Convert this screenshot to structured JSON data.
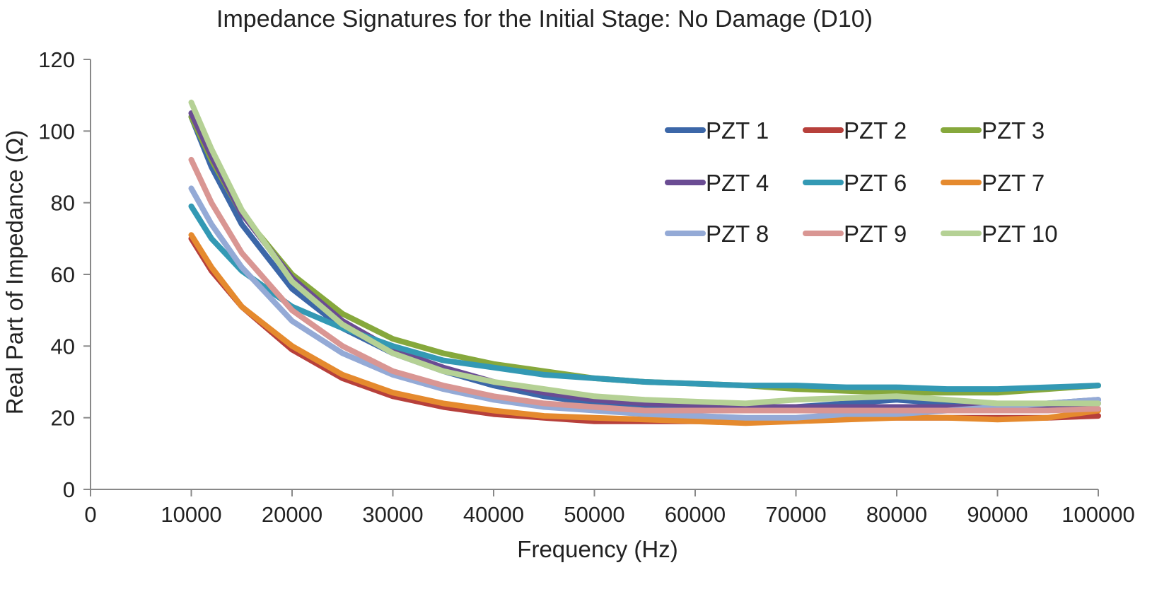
{
  "chart_data": {
    "type": "line",
    "title": "Impedance Signatures for the Initial Stage: No Damage (D10)",
    "xlabel": "Frequency (Hz)",
    "ylabel": "Real Part of Impedance (Ω)",
    "xlim": [
      0,
      100000
    ],
    "ylim": [
      0,
      120
    ],
    "xticks": [
      0,
      10000,
      20000,
      30000,
      40000,
      50000,
      60000,
      70000,
      80000,
      90000,
      100000
    ],
    "yticks": [
      0,
      20,
      40,
      60,
      80,
      100,
      120
    ],
    "grid": false,
    "legend_position": "top-right",
    "x": [
      10000,
      12000,
      15000,
      20000,
      25000,
      30000,
      35000,
      40000,
      45000,
      50000,
      55000,
      60000,
      65000,
      70000,
      75000,
      80000,
      85000,
      90000,
      95000,
      100000
    ],
    "series": [
      {
        "name": "PZT 1",
        "color": "#3c67a8",
        "values": [
          104,
          90,
          74,
          56,
          45,
          38,
          33,
          29,
          26,
          24,
          23,
          22.5,
          22,
          23,
          24,
          25,
          24,
          23,
          24,
          25
        ]
      },
      {
        "name": "PZT 2",
        "color": "#b7403b",
        "values": [
          70,
          61,
          51,
          39,
          31,
          26,
          23,
          21,
          20,
          19,
          19,
          19,
          19,
          19.5,
          20,
          20,
          20,
          20,
          20,
          20.5
        ]
      },
      {
        "name": "PZT 3",
        "color": "#86a83c",
        "values": [
          104,
          92,
          77,
          60,
          49,
          42,
          38,
          35,
          33,
          31,
          30,
          29.5,
          29,
          28,
          27.5,
          27,
          27,
          27,
          28,
          29
        ]
      },
      {
        "name": "PZT 4",
        "color": "#6a4c93",
        "values": [
          105,
          93,
          77,
          59,
          47,
          39,
          34,
          30,
          27,
          25,
          24,
          23.5,
          23,
          23,
          23,
          23,
          23,
          23,
          23.5,
          24
        ]
      },
      {
        "name": "PZT 6",
        "color": "#3399b4",
        "values": [
          79,
          70,
          61,
          51,
          45,
          40,
          36,
          34,
          32,
          31,
          30,
          29.5,
          29,
          29,
          28.5,
          28.5,
          28,
          28,
          28.5,
          29
        ]
      },
      {
        "name": "PZT 7",
        "color": "#e58a2e",
        "values": [
          71,
          62,
          51,
          40,
          32,
          27,
          24,
          22,
          20.5,
          20,
          19.5,
          19,
          18.5,
          19,
          19.5,
          20,
          20,
          19.5,
          20,
          22
        ]
      },
      {
        "name": "PZT 8",
        "color": "#94aad6",
        "values": [
          84,
          74,
          62,
          47,
          38,
          32,
          28,
          25,
          23,
          22,
          21,
          20.5,
          20,
          20,
          21,
          21,
          22,
          23,
          24,
          25
        ]
      },
      {
        "name": "PZT 9",
        "color": "#d99693",
        "values": [
          92,
          80,
          66,
          50,
          40,
          33,
          29,
          26,
          24,
          23,
          22,
          22,
          22,
          22,
          22,
          22,
          22,
          22,
          22,
          22.5
        ]
      },
      {
        "name": "PZT 10",
        "color": "#b5d195",
        "values": [
          108,
          95,
          78,
          58,
          46,
          38,
          33,
          30,
          28,
          26,
          25,
          24.5,
          24,
          25,
          25.5,
          26,
          25,
          24,
          24,
          24
        ]
      }
    ]
  }
}
